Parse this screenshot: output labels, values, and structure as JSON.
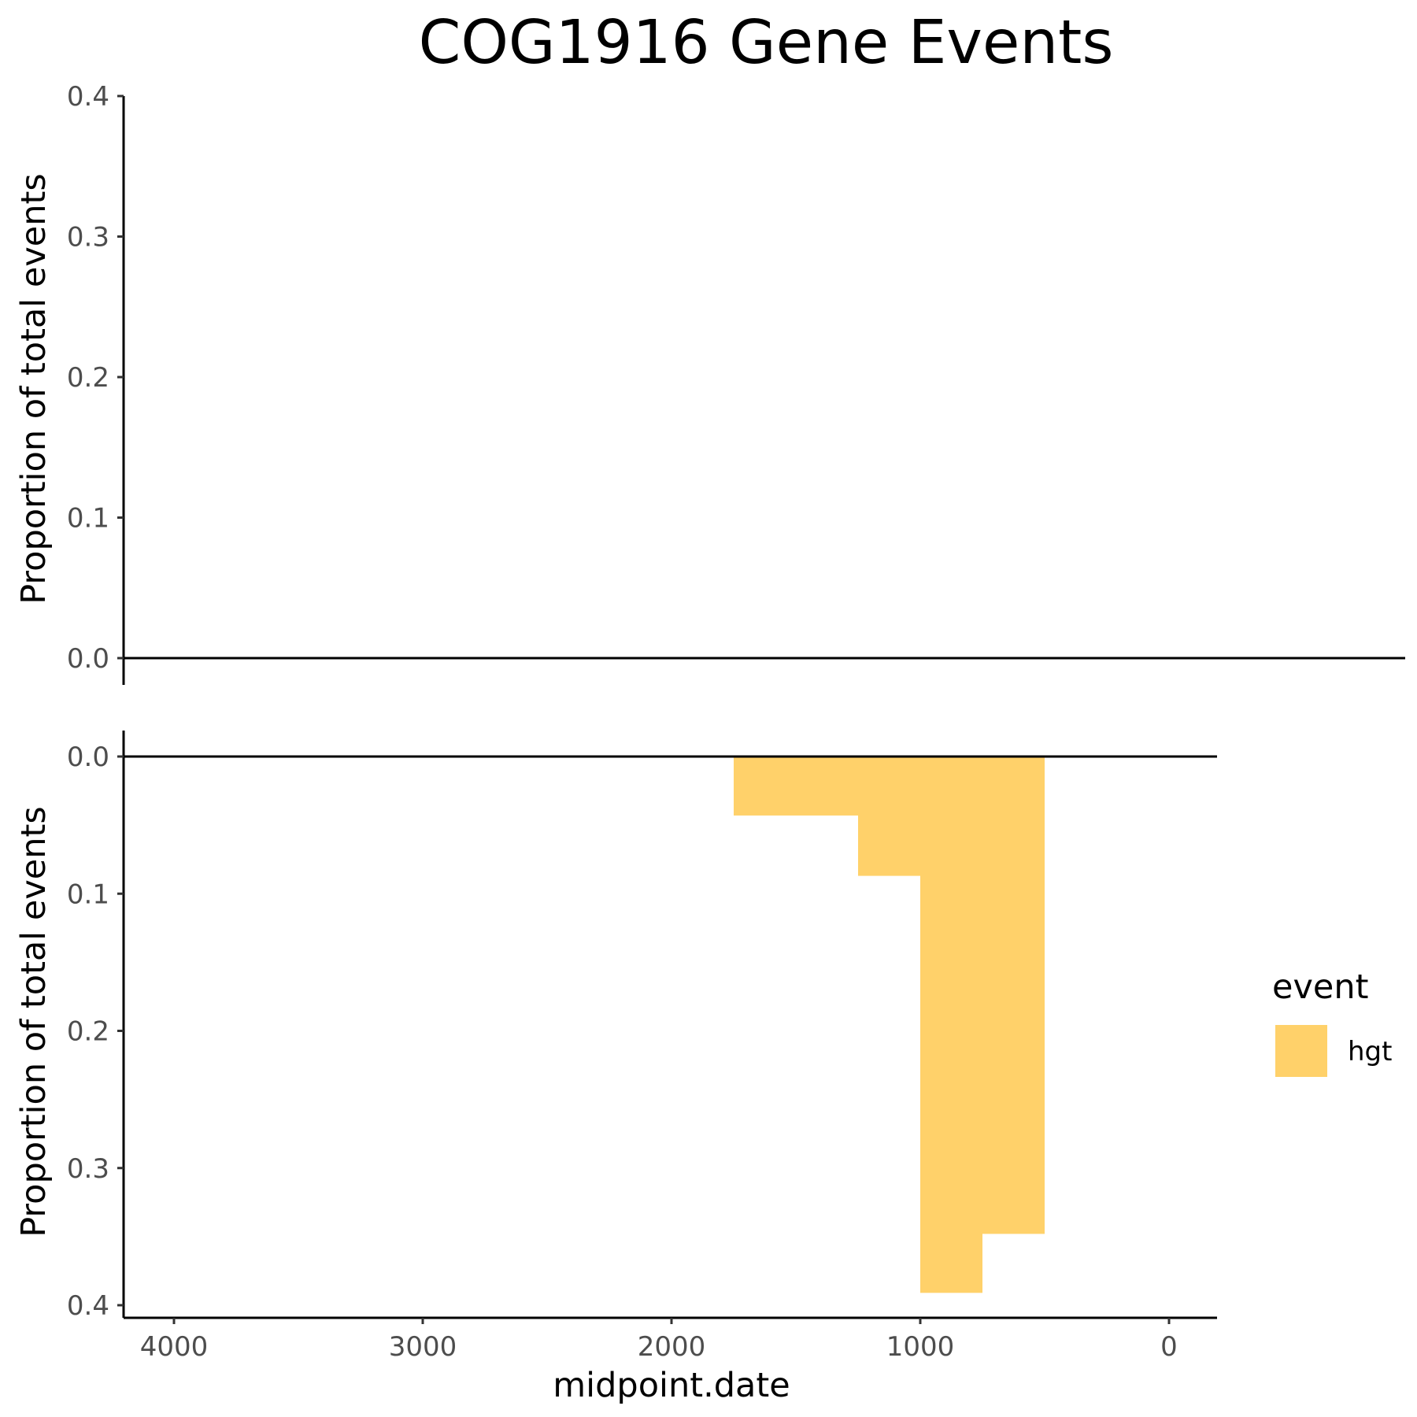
{
  "chart_data": {
    "type": "bar",
    "title": "COG1916 Gene Events",
    "xlabel": "midpoint.date",
    "x_reversed": true,
    "xlim": [
      4200,
      -200
    ],
    "x_ticks": [
      4000,
      3000,
      2000,
      1000,
      0
    ],
    "legend": {
      "title": "event",
      "placement": "right",
      "entries": [
        {
          "name": "hgt",
          "color": "#FFD16A"
        }
      ]
    },
    "panels": [
      {
        "id": "top",
        "ylabel": "Proportion of total events",
        "ylim": [
          0,
          0.4
        ],
        "y_ticks": [
          "0.0",
          "0.1",
          "0.2",
          "0.3",
          "0.4"
        ],
        "y_reversed": false,
        "bars": []
      },
      {
        "id": "bottom",
        "ylabel": "Proportion of total events",
        "ylim": [
          0,
          0.4
        ],
        "y_ticks": [
          "0.0",
          "0.1",
          "0.2",
          "0.3",
          "0.4"
        ],
        "y_reversed": true,
        "series": "hgt",
        "bars": [
          {
            "x_start": 1750,
            "x_end": 1250,
            "value": 0.043
          },
          {
            "x_start": 1250,
            "x_end": 1000,
            "value": 0.087
          },
          {
            "x_start": 1000,
            "x_end": 750,
            "value": 0.391
          },
          {
            "x_start": 750,
            "x_end": 500,
            "value": 0.348
          }
        ]
      }
    ]
  }
}
